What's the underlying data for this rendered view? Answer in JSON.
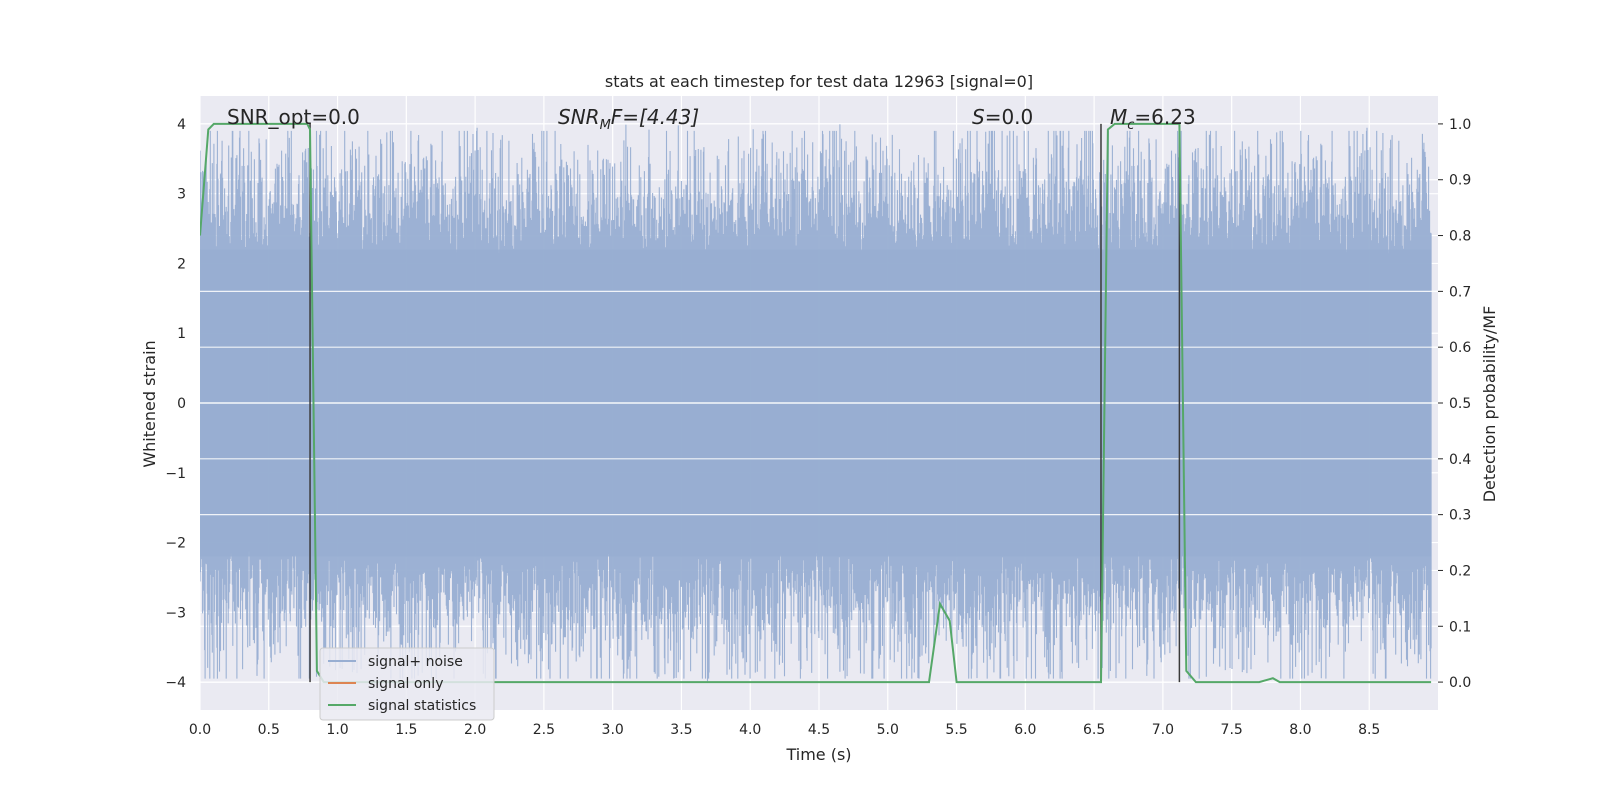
{
  "chart_data": {
    "type": "line",
    "title": "stats at each timestep for test data 12963 [signal=0]",
    "xlabel": "Time (s)",
    "ylabel": "Whitened strain",
    "ylabel_right": "Detection probability/MF",
    "xlim": [
      0.0,
      9.0
    ],
    "ylim": [
      -4.4,
      4.4
    ],
    "ylim_right": [
      -0.05,
      1.05
    ],
    "x_ticks": [
      "0.0",
      "0.5",
      "1.0",
      "1.5",
      "2.0",
      "2.5",
      "3.0",
      "3.5",
      "4.0",
      "4.5",
      "5.0",
      "5.5",
      "6.0",
      "6.5",
      "7.0",
      "7.5",
      "8.0",
      "8.5"
    ],
    "y_ticks": [
      "4",
      "3",
      "2",
      "1",
      "0",
      "−1",
      "−2",
      "−3",
      "−4"
    ],
    "y_right_ticks": [
      "1.0",
      "0.9",
      "0.8",
      "0.7",
      "0.6",
      "0.5",
      "0.4",
      "0.3",
      "0.2",
      "0.1",
      "0.0"
    ],
    "grid": true,
    "legend_position": "lower-left",
    "annotations": {
      "snr_opt": "SNR_opt=0.0",
      "snr_mf_sym": "SNR",
      "snr_mf_sub": "M",
      "snr_mf_rest": "F=[4.43]",
      "s_sym": "S",
      "s_rest": "=0.0",
      "mc_sym": "M",
      "mc_sub": "c",
      "mc_rest": "=6.23"
    },
    "vertical_markers_x": [
      0.8,
      6.55,
      7.12
    ],
    "series": [
      {
        "name": "signal+ noise",
        "axis": "left",
        "color": "#98aed2",
        "description_of_values": "dense whitened noise, approx. within -4 to 4",
        "noise_envelope": 2.5
      },
      {
        "name": "signal only",
        "axis": "left",
        "color": "#dd8452",
        "x": [],
        "y": []
      },
      {
        "name": "signal statistics",
        "axis": "right",
        "color": "#55a868",
        "x": [
          0.0,
          0.06,
          0.1,
          0.78,
          0.8,
          0.85,
          0.9,
          5.3,
          5.38,
          5.45,
          5.5,
          6.55,
          6.6,
          6.65,
          7.12,
          7.17,
          7.24,
          7.7,
          7.8,
          7.85,
          8.95
        ],
        "y": [
          0.8,
          0.99,
          1.0,
          1.0,
          0.99,
          0.02,
          0.0,
          0.0,
          0.14,
          0.11,
          0.0,
          0.0,
          0.99,
          1.0,
          1.0,
          0.02,
          0.0,
          0.0,
          0.007,
          0.0,
          0.0
        ]
      }
    ]
  }
}
